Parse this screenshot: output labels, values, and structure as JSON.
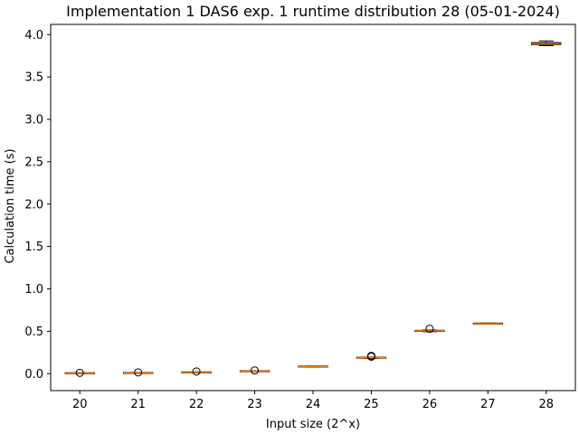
{
  "chart_data": {
    "type": "boxplot",
    "title": "Implementation 1 DAS6 exp. 1 runtime distribution 28 (05-01-2024)",
    "xlabel": "Input size (2^x)",
    "ylabel": "Calculation time (s)",
    "ylim": [
      -0.2,
      4.12
    ],
    "yticks": [
      "0.0",
      "0.5",
      "1.0",
      "1.5",
      "2.0",
      "2.5",
      "3.0",
      "3.5",
      "4.0"
    ],
    "ytick_values": [
      0.0,
      0.5,
      1.0,
      1.5,
      2.0,
      2.5,
      3.0,
      3.5,
      4.0
    ],
    "categories": [
      "20",
      "21",
      "22",
      "23",
      "24",
      "25",
      "26",
      "27",
      "28"
    ],
    "boxes": [
      {
        "x": "20",
        "whisker_low": 0.003,
        "q1": 0.004,
        "median": 0.005,
        "q3": 0.006,
        "whisker_high": 0.007,
        "outliers": [
          0.01
        ]
      },
      {
        "x": "21",
        "whisker_low": 0.006,
        "q1": 0.007,
        "median": 0.008,
        "q3": 0.009,
        "whisker_high": 0.01,
        "outliers": [
          0.015
        ]
      },
      {
        "x": "22",
        "whisker_low": 0.013,
        "q1": 0.014,
        "median": 0.015,
        "q3": 0.016,
        "whisker_high": 0.017,
        "outliers": [
          0.025
        ]
      },
      {
        "x": "23",
        "whisker_low": 0.026,
        "q1": 0.028,
        "median": 0.029,
        "q3": 0.03,
        "whisker_high": 0.032,
        "outliers": [
          0.038
        ]
      },
      {
        "x": "24",
        "whisker_low": 0.08,
        "q1": 0.083,
        "median": 0.085,
        "q3": 0.087,
        "whisker_high": 0.09,
        "outliers": []
      },
      {
        "x": "25",
        "whisker_low": 0.18,
        "q1": 0.185,
        "median": 0.188,
        "q3": 0.191,
        "whisker_high": 0.195,
        "outliers": [
          0.2,
          0.21
        ]
      },
      {
        "x": "26",
        "whisker_low": 0.495,
        "q1": 0.5,
        "median": 0.505,
        "q3": 0.51,
        "whisker_high": 0.515,
        "outliers": [
          0.53
        ]
      },
      {
        "x": "27",
        "whisker_low": 0.585,
        "q1": 0.588,
        "median": 0.59,
        "q3": 0.593,
        "whisker_high": 0.596,
        "outliers": []
      },
      {
        "x": "28",
        "whisker_low": 3.87,
        "q1": 3.88,
        "median": 3.89,
        "q3": 3.905,
        "whisker_high": 3.925,
        "outliers": []
      }
    ],
    "grid": false,
    "colors": {
      "box": "#000000",
      "median": "#ff7f0e",
      "box_fill": "#1f77b4"
    }
  }
}
